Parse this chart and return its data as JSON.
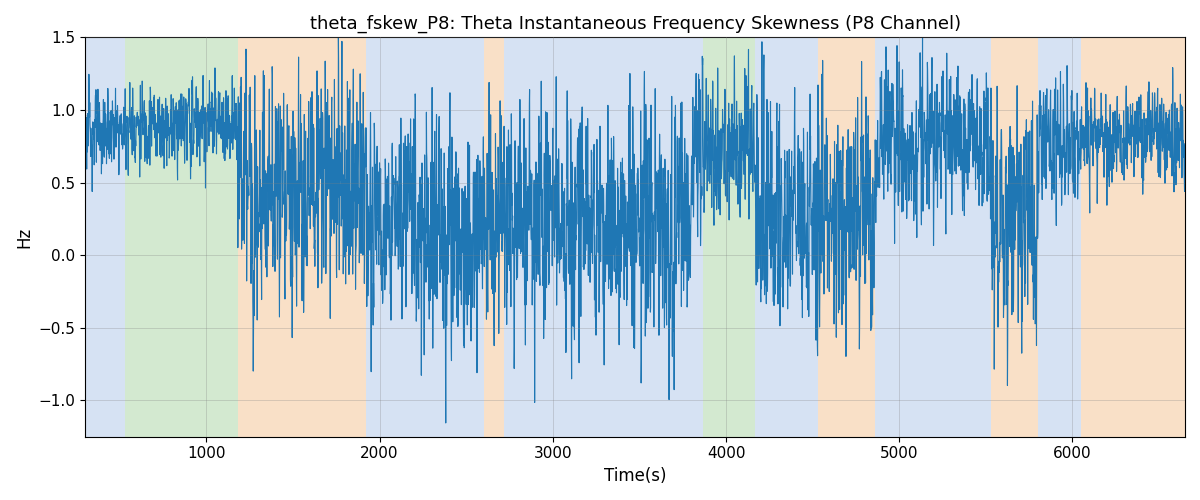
{
  "title": "theta_fskew_P8: Theta Instantaneous Frequency Skewness (P8 Channel)",
  "xlabel": "Time(s)",
  "ylabel": "Hz",
  "ylim": [
    -1.25,
    1.5
  ],
  "xlim": [
    300,
    6650
  ],
  "line_color": "#1f77b4",
  "line_width": 0.8,
  "background_bands": [
    {
      "xmin": 300,
      "xmax": 530,
      "color": "#aec6e8",
      "alpha": 0.5
    },
    {
      "xmin": 530,
      "xmax": 1180,
      "color": "#a8d5a2",
      "alpha": 0.5
    },
    {
      "xmin": 1180,
      "xmax": 1920,
      "color": "#f5c89a",
      "alpha": 0.55
    },
    {
      "xmin": 1920,
      "xmax": 2600,
      "color": "#aec6e8",
      "alpha": 0.5
    },
    {
      "xmin": 2600,
      "xmax": 2720,
      "color": "#f5c89a",
      "alpha": 0.55
    },
    {
      "xmin": 2720,
      "xmax": 3800,
      "color": "#aec6e8",
      "alpha": 0.5
    },
    {
      "xmin": 3800,
      "xmax": 3870,
      "color": "#aec6e8",
      "alpha": 0.5
    },
    {
      "xmin": 3870,
      "xmax": 4170,
      "color": "#a8d5a2",
      "alpha": 0.5
    },
    {
      "xmin": 4170,
      "xmax": 4530,
      "color": "#aec6e8",
      "alpha": 0.5
    },
    {
      "xmin": 4530,
      "xmax": 4860,
      "color": "#f5c89a",
      "alpha": 0.55
    },
    {
      "xmin": 4860,
      "xmax": 5530,
      "color": "#aec6e8",
      "alpha": 0.5
    },
    {
      "xmin": 5530,
      "xmax": 5800,
      "color": "#f5c89a",
      "alpha": 0.55
    },
    {
      "xmin": 5800,
      "xmax": 6050,
      "color": "#aec6e8",
      "alpha": 0.5
    },
    {
      "xmin": 6050,
      "xmax": 6650,
      "color": "#f5c89a",
      "alpha": 0.55
    }
  ],
  "seed": 123,
  "n_points": 5000
}
